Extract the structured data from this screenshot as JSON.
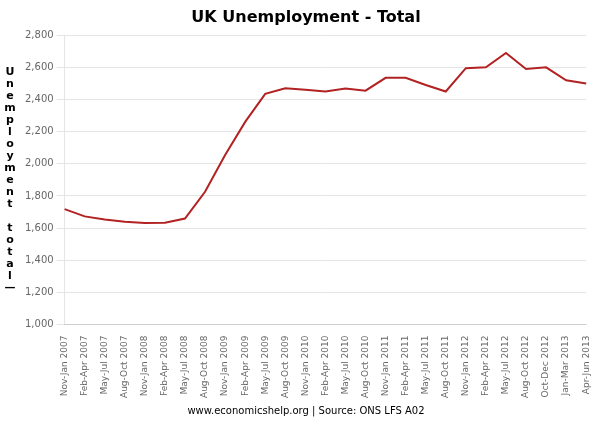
{
  "chart_data": {
    "type": "line",
    "title": "UK Unemployment - Total",
    "ylabel": "Unemployment total—",
    "annotations": [
      "www.economicshelp.org | Source: ONS LFS A02"
    ],
    "color": "#b22222",
    "categories": [
      "Nov-Jan 2007",
      "Feb-Apr 2007",
      "May-Jul 2007",
      "Aug-Oct 2007",
      "Nov-Jan 2008",
      "Feb-Apr 2008",
      "May-Jul 2008",
      "Aug-Oct 2008",
      "Nov-Jan 2009",
      "Feb-Apr 2009",
      "May-Jul 2009",
      "Aug-Oct 2009",
      "Nov-Jan 2010",
      "Feb-Apr 2010",
      "May-Jul 2010",
      "Aug-Oct 2010",
      "Nov-Jan 2011",
      "Feb-Apr 2011",
      "May-Jul 2011",
      "Aug-Oct 2011",
      "Nov-Jan 2012",
      "Feb-Apr 2012",
      "May-Jul 2012",
      "Aug-Oct 2012",
      "Oct-Dec 2012",
      "Jan-Mar 2013",
      "Apr-Jun 2013"
    ],
    "values": [
      1718,
      1673,
      1654,
      1640,
      1632,
      1634,
      1660,
      1826,
      2055,
      2261,
      2435,
      2470,
      2460,
      2450,
      2468,
      2455,
      2535,
      2535,
      2490,
      2450,
      2595,
      2600,
      2690,
      2590,
      2600,
      2520,
      2500
    ],
    "ylim": [
      1000,
      2800
    ],
    "yticks": [
      {
        "value": 1000,
        "label": "1,000"
      },
      {
        "value": 1200,
        "label": "1,200"
      },
      {
        "value": 1400,
        "label": "1,400"
      },
      {
        "value": 1600,
        "label": "1,600"
      },
      {
        "value": 1800,
        "label": "1,800"
      },
      {
        "value": 2000,
        "label": "2,000"
      },
      {
        "value": 2200,
        "label": "2,200"
      },
      {
        "value": 2400,
        "label": "2,400"
      },
      {
        "value": 2600,
        "label": "2,600"
      },
      {
        "value": 2800,
        "label": "2,800"
      }
    ],
    "grid": true
  }
}
